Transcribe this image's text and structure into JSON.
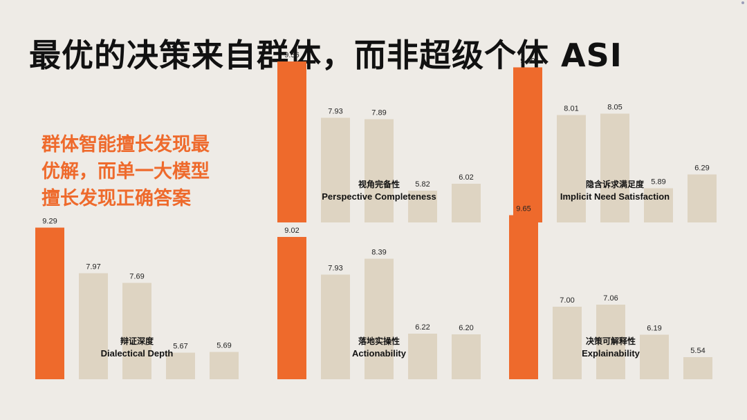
{
  "title": "最优的决策来自群体，而非超级个体 ASI",
  "note_lines": [
    "群体智能擅长发现最",
    "优解，而单一大模型",
    "擅长发现正确答案"
  ],
  "colors": {
    "highlight": "#ee6a2c",
    "base": "#ded4c2",
    "note": "#ee6a2c"
  },
  "chart_data": [
    {
      "type": "bar",
      "label_zh": "视角完备性",
      "label_en": "Perspective Completeness",
      "values": [
        9.56,
        7.93,
        7.89,
        5.82,
        6.02
      ]
    },
    {
      "type": "bar",
      "label_zh": "隐含诉求满足度",
      "label_en": "Implicit Need Satisfaction",
      "values": [
        9.39,
        8.01,
        8.05,
        5.89,
        6.29
      ]
    },
    {
      "type": "bar",
      "label_zh": "辩证深度",
      "label_en": "Dialectical Depth",
      "values": [
        9.29,
        7.97,
        7.69,
        5.67,
        5.69
      ]
    },
    {
      "type": "bar",
      "label_zh": "落地实操性",
      "label_en": "Actionability",
      "values": [
        9.02,
        7.93,
        8.39,
        6.22,
        6.2
      ]
    },
    {
      "type": "bar",
      "label_zh": "决策可解释性",
      "label_en": "Explainability",
      "values": [
        9.65,
        7.0,
        7.06,
        6.19,
        5.54
      ]
    }
  ]
}
